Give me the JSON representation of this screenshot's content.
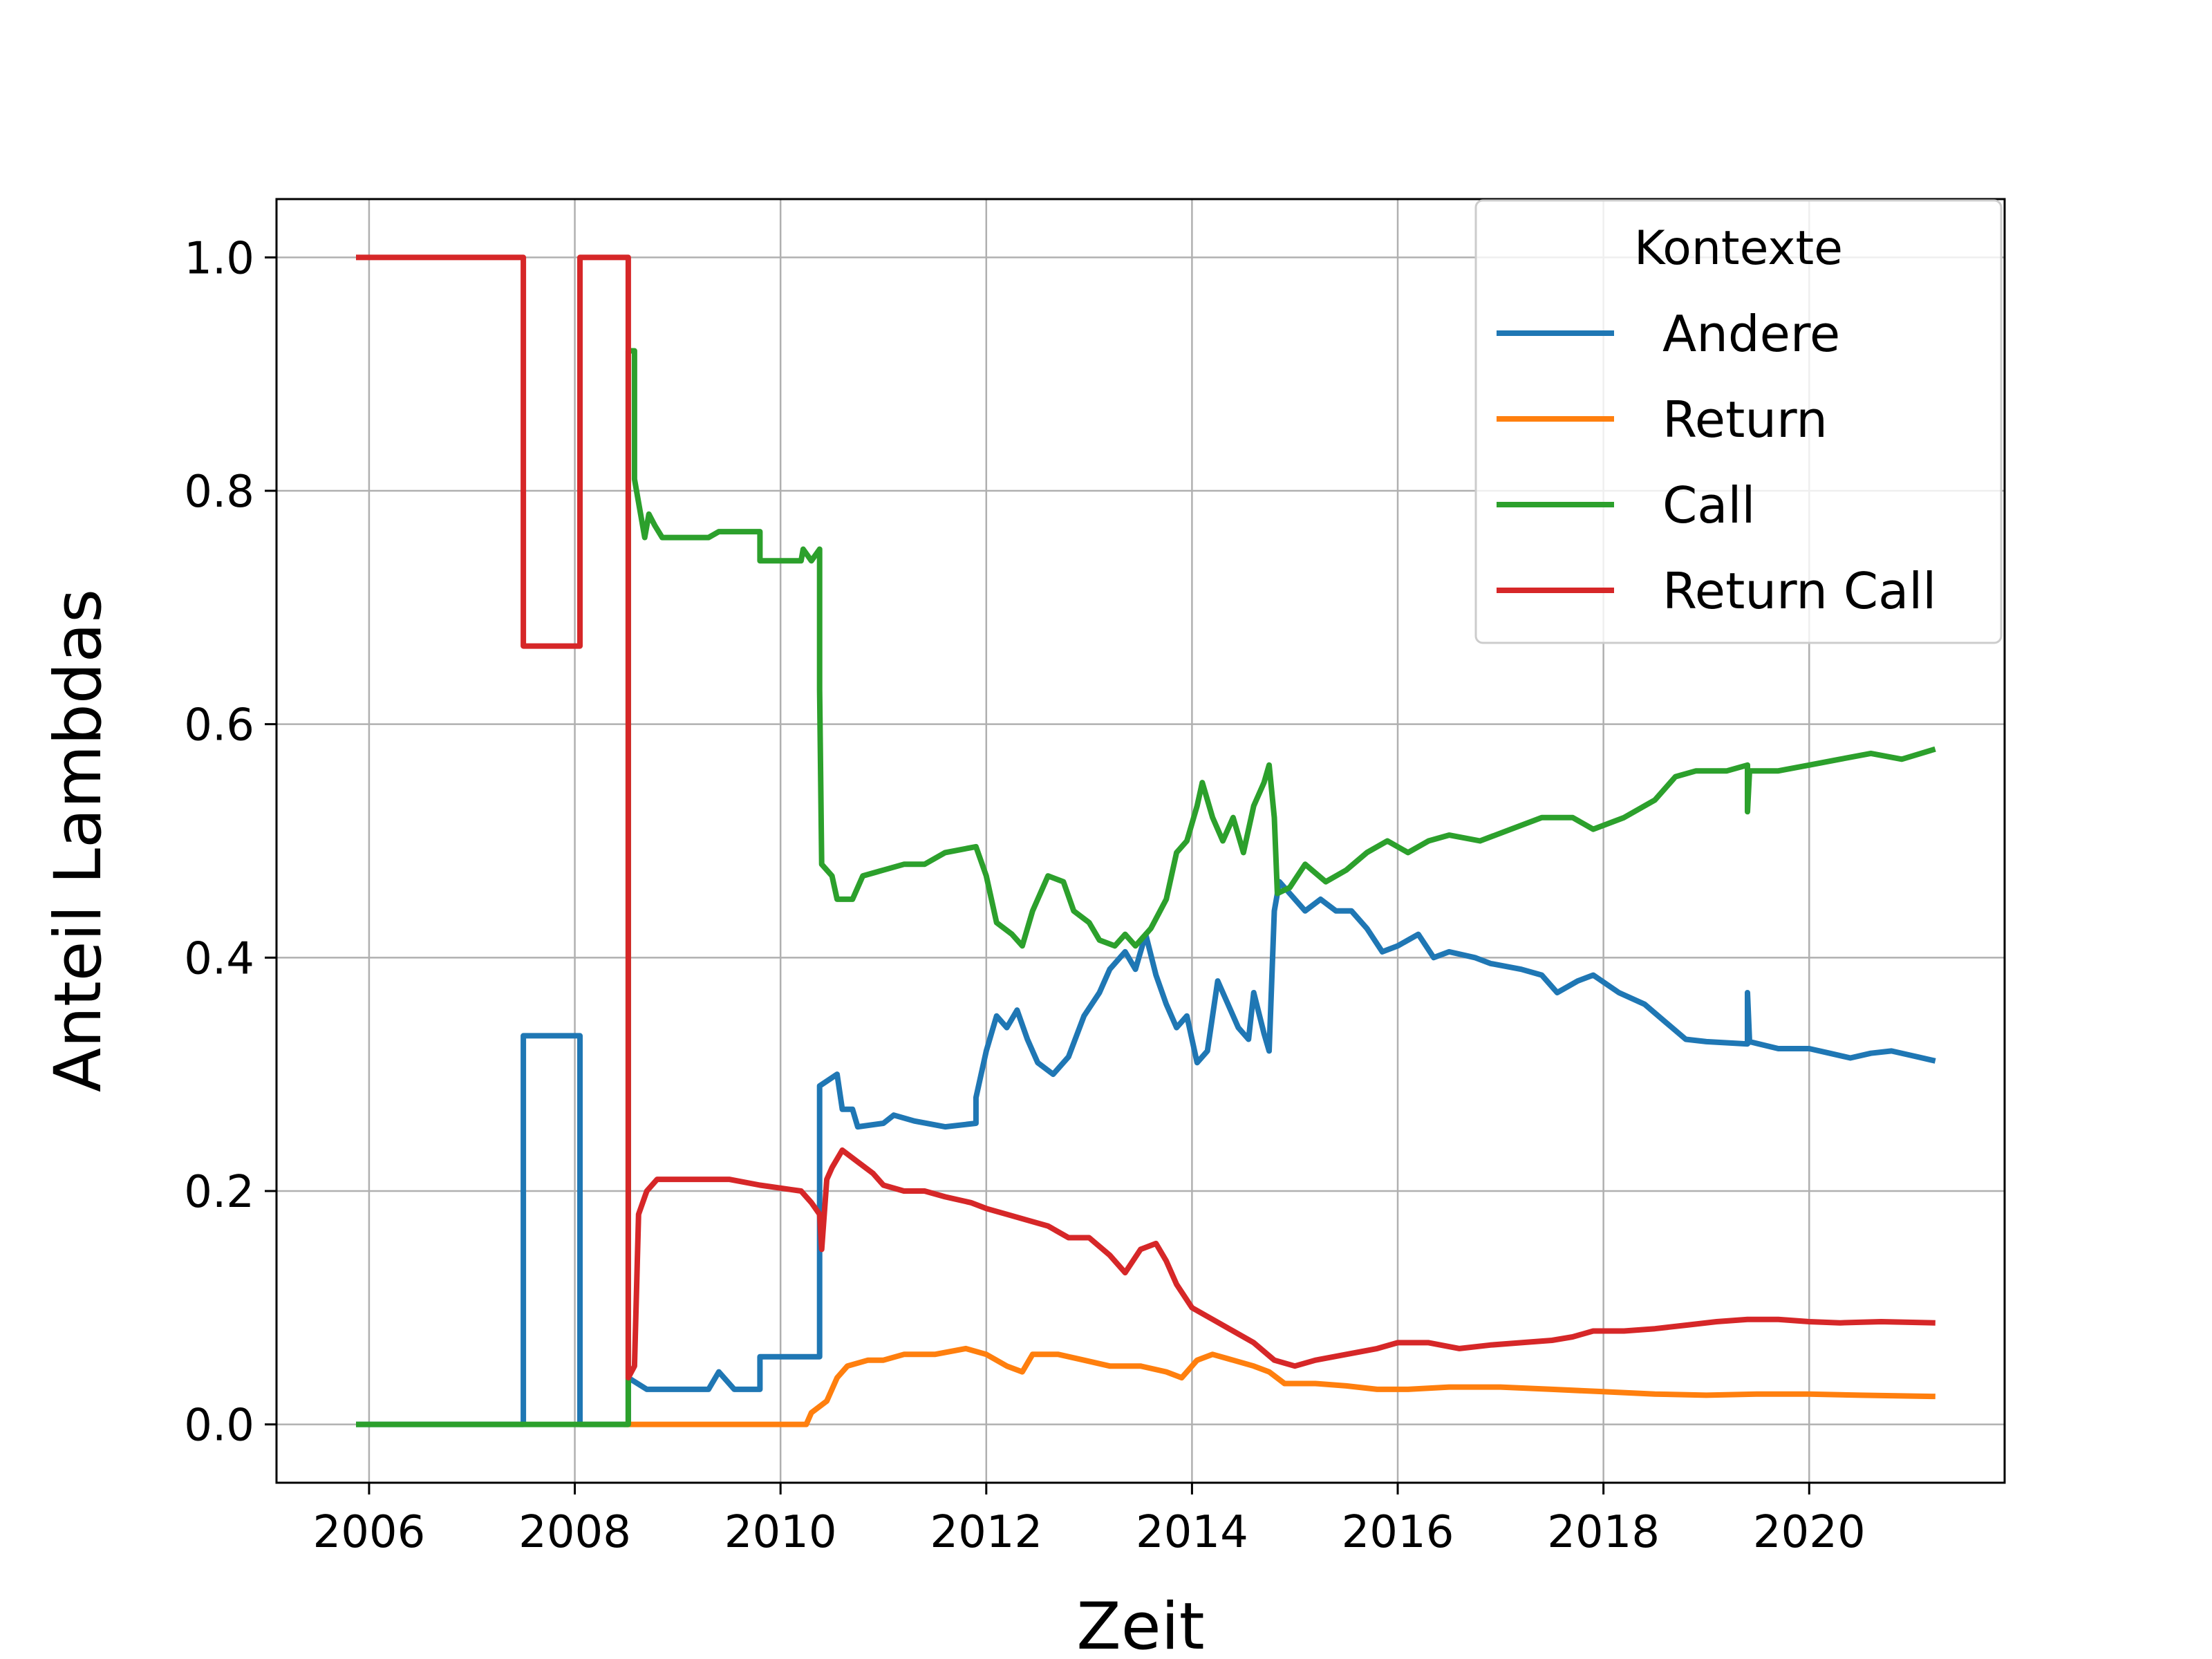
{
  "chart_data": {
    "type": "line",
    "title": "",
    "xlabel": "Zeit",
    "ylabel": "Anteil Lambdas",
    "xlim": [
      2005.1,
      2021.9
    ],
    "ylim": [
      -0.05,
      1.05
    ],
    "xticks": [
      2006,
      2008,
      2010,
      2012,
      2014,
      2016,
      2018,
      2020
    ],
    "xtick_labels": [
      "2006",
      "2008",
      "2010",
      "2012",
      "2014",
      "2016",
      "2018",
      "2020"
    ],
    "yticks": [
      0.0,
      0.2,
      0.4,
      0.6,
      0.8,
      1.0
    ],
    "ytick_labels": [
      "0.0",
      "0.2",
      "0.4",
      "0.6",
      "0.8",
      "1.0"
    ],
    "grid": true,
    "legend": {
      "title": "Kontexte",
      "position": "top-right"
    },
    "series": [
      {
        "name": "Andere",
        "color": "#1f77b4",
        "points": [
          [
            2005.9,
            0.0
          ],
          [
            2007.5,
            0.0
          ],
          [
            2007.5,
            0.333
          ],
          [
            2008.05,
            0.333
          ],
          [
            2008.05,
            0.0
          ],
          [
            2008.52,
            0.0
          ],
          [
            2008.52,
            0.04
          ],
          [
            2008.7,
            0.03
          ],
          [
            2009.3,
            0.03
          ],
          [
            2009.4,
            0.045
          ],
          [
            2009.55,
            0.03
          ],
          [
            2009.8,
            0.03
          ],
          [
            2009.8,
            0.058
          ],
          [
            2010.38,
            0.058
          ],
          [
            2010.38,
            0.15
          ],
          [
            2010.38,
            0.29
          ],
          [
            2010.55,
            0.3
          ],
          [
            2010.6,
            0.27
          ],
          [
            2010.7,
            0.27
          ],
          [
            2010.75,
            0.255
          ],
          [
            2011.0,
            0.258
          ],
          [
            2011.1,
            0.265
          ],
          [
            2011.3,
            0.26
          ],
          [
            2011.6,
            0.255
          ],
          [
            2011.9,
            0.258
          ],
          [
            2011.9,
            0.28
          ],
          [
            2012.0,
            0.32
          ],
          [
            2012.1,
            0.35
          ],
          [
            2012.2,
            0.34
          ],
          [
            2012.3,
            0.355
          ],
          [
            2012.4,
            0.33
          ],
          [
            2012.5,
            0.31
          ],
          [
            2012.65,
            0.3
          ],
          [
            2012.8,
            0.315
          ],
          [
            2012.95,
            0.35
          ],
          [
            2013.1,
            0.37
          ],
          [
            2013.2,
            0.39
          ],
          [
            2013.35,
            0.405
          ],
          [
            2013.45,
            0.39
          ],
          [
            2013.55,
            0.42
          ],
          [
            2013.65,
            0.385
          ],
          [
            2013.75,
            0.36
          ],
          [
            2013.85,
            0.34
          ],
          [
            2013.95,
            0.35
          ],
          [
            2014.05,
            0.31
          ],
          [
            2014.15,
            0.32
          ],
          [
            2014.25,
            0.38
          ],
          [
            2014.35,
            0.36
          ],
          [
            2014.45,
            0.34
          ],
          [
            2014.55,
            0.33
          ],
          [
            2014.6,
            0.37
          ],
          [
            2014.7,
            0.335
          ],
          [
            2014.75,
            0.32
          ],
          [
            2014.8,
            0.44
          ],
          [
            2014.85,
            0.465
          ],
          [
            2014.95,
            0.455
          ],
          [
            2015.1,
            0.44
          ],
          [
            2015.25,
            0.45
          ],
          [
            2015.4,
            0.44
          ],
          [
            2015.55,
            0.44
          ],
          [
            2015.7,
            0.425
          ],
          [
            2015.85,
            0.405
          ],
          [
            2016.0,
            0.41
          ],
          [
            2016.2,
            0.42
          ],
          [
            2016.35,
            0.4
          ],
          [
            2016.5,
            0.405
          ],
          [
            2016.75,
            0.4
          ],
          [
            2016.9,
            0.395
          ],
          [
            2017.2,
            0.39
          ],
          [
            2017.4,
            0.385
          ],
          [
            2017.55,
            0.37
          ],
          [
            2017.75,
            0.38
          ],
          [
            2017.9,
            0.385
          ],
          [
            2018.15,
            0.37
          ],
          [
            2018.4,
            0.36
          ],
          [
            2018.6,
            0.345
          ],
          [
            2018.8,
            0.33
          ],
          [
            2019.0,
            0.328
          ],
          [
            2019.4,
            0.326
          ],
          [
            2019.4,
            0.37
          ],
          [
            2019.42,
            0.328
          ],
          [
            2019.7,
            0.322
          ],
          [
            2020.0,
            0.322
          ],
          [
            2020.2,
            0.318
          ],
          [
            2020.4,
            0.314
          ],
          [
            2020.6,
            0.318
          ],
          [
            2020.8,
            0.32
          ],
          [
            2021.0,
            0.316
          ],
          [
            2021.2,
            0.312
          ]
        ]
      },
      {
        "name": "Return",
        "color": "#ff7f0e",
        "points": [
          [
            2008.5,
            0.0
          ],
          [
            2010.25,
            0.0
          ],
          [
            2010.3,
            0.01
          ],
          [
            2010.45,
            0.02
          ],
          [
            2010.55,
            0.04
          ],
          [
            2010.65,
            0.05
          ],
          [
            2010.85,
            0.055
          ],
          [
            2011.0,
            0.055
          ],
          [
            2011.2,
            0.06
          ],
          [
            2011.5,
            0.06
          ],
          [
            2011.8,
            0.065
          ],
          [
            2012.0,
            0.06
          ],
          [
            2012.2,
            0.05
          ],
          [
            2012.35,
            0.045
          ],
          [
            2012.45,
            0.06
          ],
          [
            2012.7,
            0.06
          ],
          [
            2012.95,
            0.055
          ],
          [
            2013.2,
            0.05
          ],
          [
            2013.5,
            0.05
          ],
          [
            2013.75,
            0.045
          ],
          [
            2013.9,
            0.04
          ],
          [
            2014.05,
            0.055
          ],
          [
            2014.2,
            0.06
          ],
          [
            2014.4,
            0.055
          ],
          [
            2014.6,
            0.05
          ],
          [
            2014.75,
            0.045
          ],
          [
            2014.9,
            0.035
          ],
          [
            2015.2,
            0.035
          ],
          [
            2015.5,
            0.033
          ],
          [
            2015.8,
            0.03
          ],
          [
            2016.1,
            0.03
          ],
          [
            2016.5,
            0.032
          ],
          [
            2017.0,
            0.032
          ],
          [
            2017.5,
            0.03
          ],
          [
            2018.0,
            0.028
          ],
          [
            2018.5,
            0.026
          ],
          [
            2019.0,
            0.025
          ],
          [
            2019.5,
            0.026
          ],
          [
            2020.0,
            0.026
          ],
          [
            2020.5,
            0.025
          ],
          [
            2021.2,
            0.024
          ]
        ]
      },
      {
        "name": "Call",
        "color": "#2ca02c",
        "points": [
          [
            2005.9,
            0.0
          ],
          [
            2008.52,
            0.0
          ],
          [
            2008.52,
            0.92
          ],
          [
            2008.58,
            0.92
          ],
          [
            2008.58,
            0.81
          ],
          [
            2008.62,
            0.79
          ],
          [
            2008.68,
            0.76
          ],
          [
            2008.72,
            0.78
          ],
          [
            2008.78,
            0.77
          ],
          [
            2008.85,
            0.76
          ],
          [
            2009.3,
            0.76
          ],
          [
            2009.4,
            0.765
          ],
          [
            2009.8,
            0.765
          ],
          [
            2009.8,
            0.74
          ],
          [
            2010.2,
            0.74
          ],
          [
            2010.22,
            0.75
          ],
          [
            2010.3,
            0.74
          ],
          [
            2010.38,
            0.75
          ],
          [
            2010.38,
            0.63
          ],
          [
            2010.4,
            0.48
          ],
          [
            2010.5,
            0.47
          ],
          [
            2010.55,
            0.45
          ],
          [
            2010.7,
            0.45
          ],
          [
            2010.8,
            0.47
          ],
          [
            2011.0,
            0.475
          ],
          [
            2011.2,
            0.48
          ],
          [
            2011.4,
            0.48
          ],
          [
            2011.6,
            0.49
          ],
          [
            2011.9,
            0.495
          ],
          [
            2012.0,
            0.47
          ],
          [
            2012.1,
            0.43
          ],
          [
            2012.25,
            0.42
          ],
          [
            2012.35,
            0.41
          ],
          [
            2012.45,
            0.44
          ],
          [
            2012.6,
            0.47
          ],
          [
            2012.75,
            0.465
          ],
          [
            2012.85,
            0.44
          ],
          [
            2013.0,
            0.43
          ],
          [
            2013.1,
            0.415
          ],
          [
            2013.25,
            0.41
          ],
          [
            2013.35,
            0.42
          ],
          [
            2013.45,
            0.41
          ],
          [
            2013.6,
            0.425
          ],
          [
            2013.75,
            0.45
          ],
          [
            2013.85,
            0.49
          ],
          [
            2013.95,
            0.5
          ],
          [
            2014.05,
            0.53
          ],
          [
            2014.1,
            0.55
          ],
          [
            2014.2,
            0.52
          ],
          [
            2014.3,
            0.5
          ],
          [
            2014.4,
            0.52
          ],
          [
            2014.5,
            0.49
          ],
          [
            2014.6,
            0.53
          ],
          [
            2014.7,
            0.55
          ],
          [
            2014.75,
            0.565
          ],
          [
            2014.8,
            0.52
          ],
          [
            2014.83,
            0.455
          ],
          [
            2014.95,
            0.46
          ],
          [
            2015.1,
            0.48
          ],
          [
            2015.3,
            0.465
          ],
          [
            2015.5,
            0.475
          ],
          [
            2015.7,
            0.49
          ],
          [
            2015.9,
            0.5
          ],
          [
            2016.1,
            0.49
          ],
          [
            2016.3,
            0.5
          ],
          [
            2016.5,
            0.505
          ],
          [
            2016.8,
            0.5
          ],
          [
            2017.1,
            0.51
          ],
          [
            2017.4,
            0.52
          ],
          [
            2017.7,
            0.52
          ],
          [
            2017.9,
            0.51
          ],
          [
            2018.2,
            0.52
          ],
          [
            2018.5,
            0.535
          ],
          [
            2018.7,
            0.555
          ],
          [
            2018.9,
            0.56
          ],
          [
            2019.2,
            0.56
          ],
          [
            2019.4,
            0.565
          ],
          [
            2019.4,
            0.525
          ],
          [
            2019.42,
            0.56
          ],
          [
            2019.7,
            0.56
          ],
          [
            2020.0,
            0.565
          ],
          [
            2020.3,
            0.57
          ],
          [
            2020.6,
            0.575
          ],
          [
            2020.9,
            0.57
          ],
          [
            2021.2,
            0.578
          ]
        ]
      },
      {
        "name": "Return Call",
        "color": "#d62728",
        "points": [
          [
            2005.9,
            1.0
          ],
          [
            2007.5,
            1.0
          ],
          [
            2007.5,
            0.667
          ],
          [
            2008.05,
            0.667
          ],
          [
            2008.05,
            1.0
          ],
          [
            2008.52,
            1.0
          ],
          [
            2008.52,
            0.04
          ],
          [
            2008.58,
            0.05
          ],
          [
            2008.62,
            0.18
          ],
          [
            2008.7,
            0.2
          ],
          [
            2008.8,
            0.21
          ],
          [
            2009.3,
            0.21
          ],
          [
            2009.5,
            0.21
          ],
          [
            2009.8,
            0.205
          ],
          [
            2010.2,
            0.2
          ],
          [
            2010.3,
            0.19
          ],
          [
            2010.38,
            0.18
          ],
          [
            2010.4,
            0.15
          ],
          [
            2010.45,
            0.21
          ],
          [
            2010.5,
            0.22
          ],
          [
            2010.6,
            0.235
          ],
          [
            2010.75,
            0.225
          ],
          [
            2010.9,
            0.215
          ],
          [
            2011.0,
            0.205
          ],
          [
            2011.2,
            0.2
          ],
          [
            2011.4,
            0.2
          ],
          [
            2011.6,
            0.195
          ],
          [
            2011.85,
            0.19
          ],
          [
            2012.0,
            0.185
          ],
          [
            2012.2,
            0.18
          ],
          [
            2012.4,
            0.175
          ],
          [
            2012.6,
            0.17
          ],
          [
            2012.8,
            0.16
          ],
          [
            2013.0,
            0.16
          ],
          [
            2013.2,
            0.145
          ],
          [
            2013.35,
            0.13
          ],
          [
            2013.5,
            0.15
          ],
          [
            2013.65,
            0.155
          ],
          [
            2013.75,
            0.14
          ],
          [
            2013.85,
            0.12
          ],
          [
            2014.0,
            0.1
          ],
          [
            2014.2,
            0.09
          ],
          [
            2014.4,
            0.08
          ],
          [
            2014.6,
            0.07
          ],
          [
            2014.8,
            0.055
          ],
          [
            2015.0,
            0.05
          ],
          [
            2015.2,
            0.055
          ],
          [
            2015.5,
            0.06
          ],
          [
            2015.8,
            0.065
          ],
          [
            2016.0,
            0.07
          ],
          [
            2016.3,
            0.07
          ],
          [
            2016.6,
            0.065
          ],
          [
            2016.9,
            0.068
          ],
          [
            2017.2,
            0.07
          ],
          [
            2017.5,
            0.072
          ],
          [
            2017.7,
            0.075
          ],
          [
            2017.9,
            0.08
          ],
          [
            2018.2,
            0.08
          ],
          [
            2018.5,
            0.082
          ],
          [
            2018.8,
            0.085
          ],
          [
            2019.1,
            0.088
          ],
          [
            2019.4,
            0.09
          ],
          [
            2019.7,
            0.09
          ],
          [
            2020.0,
            0.088
          ],
          [
            2020.3,
            0.087
          ],
          [
            2020.7,
            0.088
          ],
          [
            2021.2,
            0.087
          ]
        ]
      }
    ]
  }
}
